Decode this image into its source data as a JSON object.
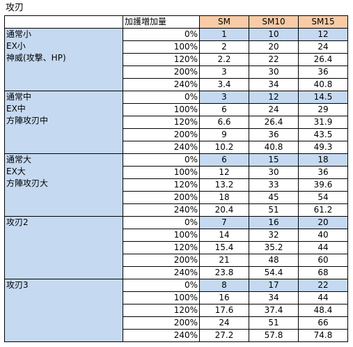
{
  "sheet_title": "攻刃",
  "headers": {
    "gain": "加護増加量",
    "sm": "SM",
    "sm10": "SM10",
    "sm15": "SM15"
  },
  "groups": [
    {
      "lines": [
        "通常小",
        "EX小",
        "神威(攻撃、HP)"
      ],
      "rows": [
        {
          "pct": "0%",
          "sm": "1",
          "sm10": "10",
          "sm15": "12"
        },
        {
          "pct": "100%",
          "sm": "2",
          "sm10": "20",
          "sm15": "24"
        },
        {
          "pct": "120%",
          "sm": "2.2",
          "sm10": "22",
          "sm15": "26.4"
        },
        {
          "pct": "200%",
          "sm": "3",
          "sm10": "30",
          "sm15": "36"
        },
        {
          "pct": "240%",
          "sm": "3.4",
          "sm10": "34",
          "sm15": "40.8"
        }
      ]
    },
    {
      "lines": [
        "通常中",
        "EX中",
        "方陣攻刃中"
      ],
      "rows": [
        {
          "pct": "0%",
          "sm": "3",
          "sm10": "12",
          "sm15": "14.5"
        },
        {
          "pct": "100%",
          "sm": "6",
          "sm10": "24",
          "sm15": "29"
        },
        {
          "pct": "120%",
          "sm": "6.6",
          "sm10": "26.4",
          "sm15": "31.9"
        },
        {
          "pct": "200%",
          "sm": "9",
          "sm10": "36",
          "sm15": "43.5"
        },
        {
          "pct": "240%",
          "sm": "10.2",
          "sm10": "40.8",
          "sm15": "49.3"
        }
      ]
    },
    {
      "lines": [
        "通常大",
        "EX大",
        "方陣攻刃大"
      ],
      "rows": [
        {
          "pct": "0%",
          "sm": "6",
          "sm10": "15",
          "sm15": "18"
        },
        {
          "pct": "100%",
          "sm": "12",
          "sm10": "30",
          "sm15": "36"
        },
        {
          "pct": "120%",
          "sm": "13.2",
          "sm10": "33",
          "sm15": "39.6"
        },
        {
          "pct": "200%",
          "sm": "18",
          "sm10": "45",
          "sm15": "54"
        },
        {
          "pct": "240%",
          "sm": "20.4",
          "sm10": "51",
          "sm15": "61.2"
        }
      ]
    },
    {
      "lines": [
        "攻刃2"
      ],
      "rows": [
        {
          "pct": "0%",
          "sm": "7",
          "sm10": "16",
          "sm15": "20"
        },
        {
          "pct": "100%",
          "sm": "14",
          "sm10": "32",
          "sm15": "40"
        },
        {
          "pct": "120%",
          "sm": "15.4",
          "sm10": "35.2",
          "sm15": "44"
        },
        {
          "pct": "200%",
          "sm": "21",
          "sm10": "48",
          "sm15": "60"
        },
        {
          "pct": "240%",
          "sm": "23.8",
          "sm10": "54.4",
          "sm15": "68"
        }
      ]
    },
    {
      "lines": [
        "攻刃3"
      ],
      "rows": [
        {
          "pct": "0%",
          "sm": "8",
          "sm10": "17",
          "sm15": "22"
        },
        {
          "pct": "100%",
          "sm": "16",
          "sm10": "34",
          "sm15": "44"
        },
        {
          "pct": "120%",
          "sm": "17.6",
          "sm10": "37.4",
          "sm15": "48.4"
        },
        {
          "pct": "200%",
          "sm": "24",
          "sm10": "51",
          "sm15": "66"
        },
        {
          "pct": "240%",
          "sm": "27.2",
          "sm10": "57.8",
          "sm15": "74.8"
        }
      ]
    }
  ],
  "colors": {
    "header_fill": "#f8cba6",
    "group_fill": "#c5d9f1",
    "grid_line": "#000000"
  }
}
